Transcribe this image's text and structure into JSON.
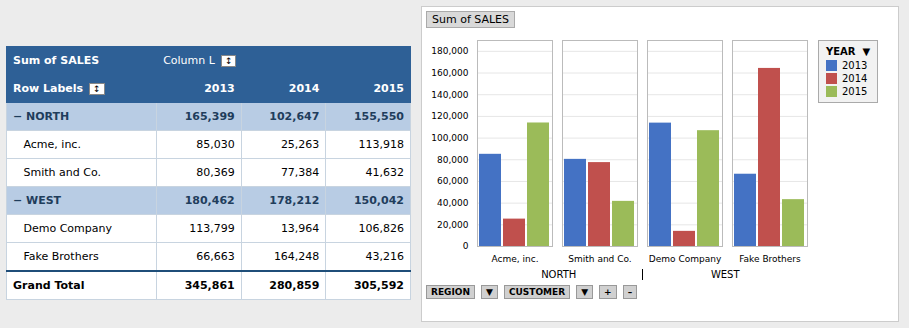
{
  "chart_data": [
    {
      "type": "table",
      "title": "Sum of SALES",
      "annotations": [
        "Column L",
        "↕",
        "Row Labels",
        "↕"
      ],
      "categories": [
        "− NORTH",
        "   Acme, inc.",
        "   Smith and Co.",
        "− WEST",
        "   Demo Company",
        "   Fake Brothers",
        "Grand Total"
      ],
      "series": [
        {
          "name": "2013",
          "values": [
            165399,
            85030,
            80369,
            180462,
            113799,
            66663,
            345861
          ],
          "value_labels": [
            "165,399",
            "85,030",
            "80,369",
            "180,462",
            "113,799",
            "66,663",
            "345,861"
          ]
        },
        {
          "name": "2014",
          "values": [
            102647,
            25263,
            77384,
            178212,
            13964,
            164248,
            280859
          ],
          "value_labels": [
            "102,647",
            "25,263",
            "77,384",
            "178,212",
            "13,964",
            "164,248",
            "280,859"
          ]
        },
        {
          "name": "2015",
          "values": [
            155550,
            113918,
            41632,
            150042,
            106826,
            43216,
            305592
          ],
          "value_labels": [
            "155,550",
            "113,918",
            "41,632",
            "150,042",
            "106,826",
            "43,216",
            "305,592"
          ]
        }
      ]
    },
    {
      "type": "bar",
      "title": "Sum of SALES",
      "categories": [
        "Acme, inc.",
        "Smith and Co.",
        "Demo Company",
        "Fake Brothers"
      ],
      "groups": [
        "NORTH",
        "NORTH",
        "WEST",
        "WEST"
      ],
      "series": [
        {
          "name": "2013",
          "color": "#4472C4",
          "values": [
            85030,
            80369,
            113799,
            66663
          ]
        },
        {
          "name": "2014",
          "color": "#C0504D",
          "values": [
            25263,
            77384,
            13964,
            164248
          ]
        },
        {
          "name": "2015",
          "color": "#9BBB59",
          "values": [
            113918,
            41632,
            106826,
            43216
          ]
        }
      ],
      "ylim": [
        0,
        190000
      ],
      "yticks": [
        0,
        {
          "value": 20000,
          "label": "20,000"
        },
        {
          "value": 40000,
          "label": "40,000"
        },
        {
          "value": 60000,
          "label": "60,000"
        },
        {
          "value": 80000,
          "label": "80,000"
        },
        {
          "value": 100000,
          "label": "100,000"
        },
        {
          "value": 120000,
          "label": "120,000"
        },
        {
          "value": 140000,
          "label": "140,000"
        },
        {
          "value": 160000,
          "label": "160,000"
        },
        {
          "value": 180000,
          "label": "180,000"
        }
      ],
      "grid": true,
      "legend": "right",
      "legend_title": "YEAR  ▼",
      "annotations": [
        "REGION",
        "▼",
        "CUSTOMER",
        "▼",
        "+",
        "–"
      ]
    }
  ]
}
